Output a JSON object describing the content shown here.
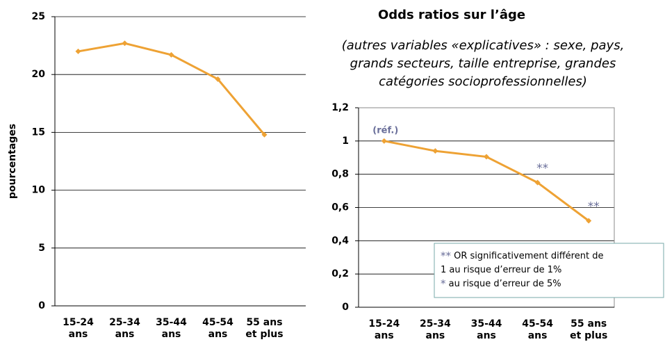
{
  "chart_data": [
    {
      "type": "line",
      "ylabel": "pourcentages",
      "categories": [
        [
          "15-24",
          "ans"
        ],
        [
          "25-34",
          "ans"
        ],
        [
          "35-44",
          "ans"
        ],
        [
          "45-54",
          "ans"
        ],
        [
          "55 ans",
          "et plus"
        ]
      ],
      "values": [
        22.0,
        22.7,
        21.7,
        19.6,
        14.8
      ],
      "color": "#eea234",
      "ylim": [
        0,
        25
      ],
      "yticks": [
        0,
        5,
        10,
        15,
        20,
        25
      ],
      "grid": true
    },
    {
      "type": "line",
      "title": "Odds ratios sur l’âge",
      "subtitle": [
        "(autres variables «explicatives» : sexe, pays,",
        "grands secteurs, taille entreprise, grandes",
        "catégories socioprofessionnelles)"
      ],
      "categories": [
        [
          "15-24",
          "ans"
        ],
        [
          "25-34",
          "ans"
        ],
        [
          "35-44",
          "ans"
        ],
        [
          "45-54",
          "ans"
        ],
        [
          "55 ans",
          "et plus"
        ]
      ],
      "values": [
        1.0,
        0.94,
        0.905,
        0.75,
        0.52
      ],
      "color": "#eea234",
      "point_labels": [
        "(réf.)",
        null,
        null,
        "**",
        "**"
      ],
      "ylim": [
        0,
        1.2
      ],
      "yticks": [
        0,
        {
          "value": 0.2,
          "label": "0,2"
        },
        {
          "value": 0.4,
          "label": "0,4"
        },
        {
          "value": 0.6,
          "label": "0,6"
        },
        {
          "value": 0.8,
          "label": "0,8"
        },
        1,
        {
          "value": 1.2,
          "label": "1,2"
        }
      ],
      "grid": true,
      "note": [
        [
          "**",
          " OR significativement différent de"
        ],
        [
          "1 au risque d’erreur de 1%"
        ],
        [
          "*",
          " au risque d’erreur de 5%"
        ]
      ]
    }
  ]
}
